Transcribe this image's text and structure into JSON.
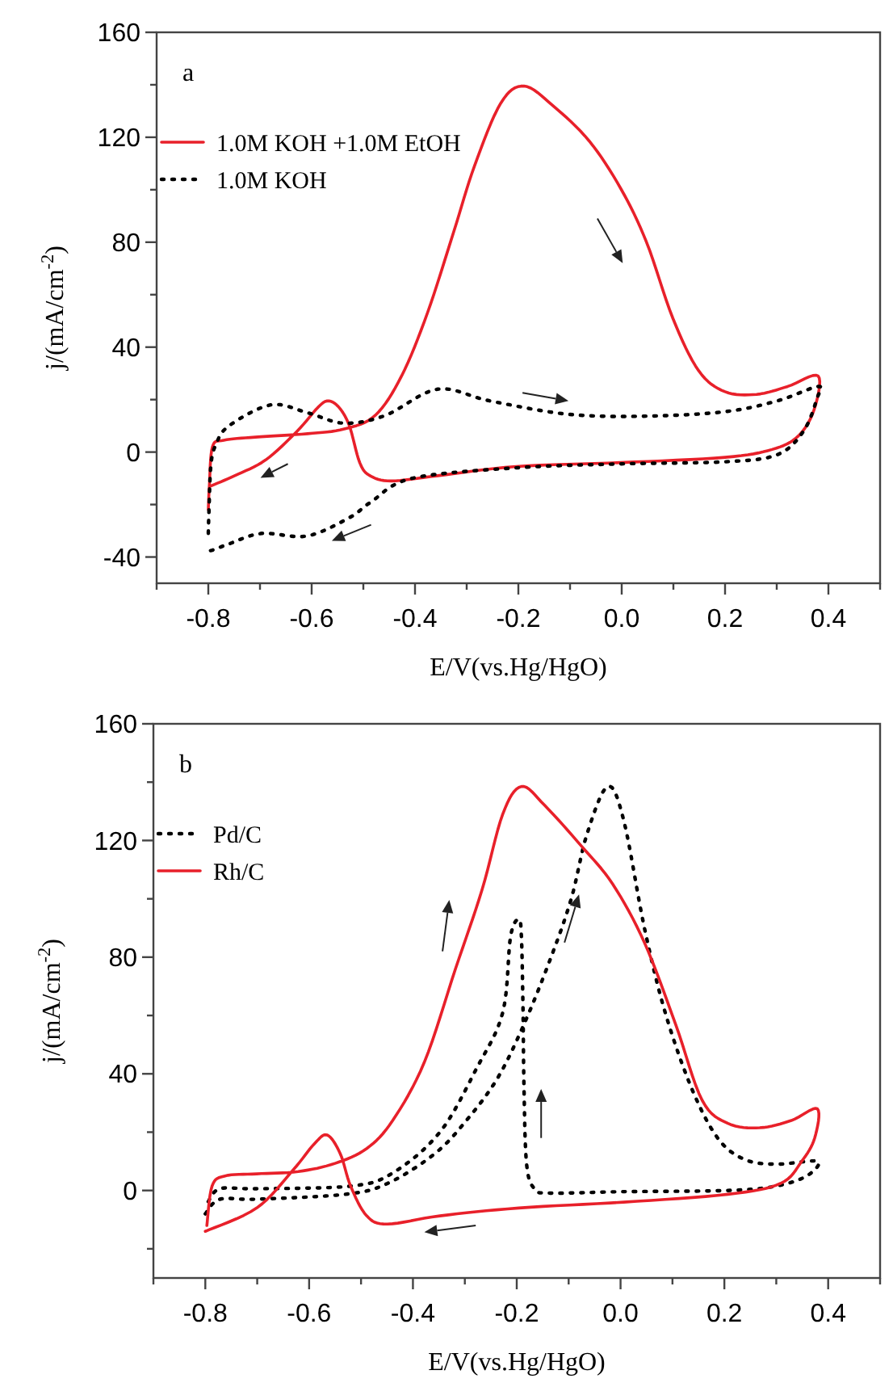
{
  "chart_data": [
    {
      "type": "line",
      "annotations": [
        "a"
      ],
      "xlabel": "E/V(vs.Hg/HgO)",
      "ylabel": "j/(mA/cm$^{-2}$)",
      "xlim": [
        -0.9,
        0.5
      ],
      "ylim": [
        -50,
        160
      ],
      "xticks": [
        {
          "value": -0.9,
          "label": null
        },
        -0.8,
        {
          "value": -0.7,
          "label": null
        },
        -0.6,
        {
          "value": -0.5,
          "label": null
        },
        -0.4,
        {
          "value": -0.3,
          "label": null
        },
        -0.2,
        {
          "value": -0.1,
          "label": null
        },
        {
          "value": 0,
          "label": "0.0"
        },
        {
          "value": 0.1,
          "label": null
        },
        0.2,
        {
          "value": 0.3,
          "label": null
        },
        0.4,
        {
          "value": 0.5,
          "label": null
        }
      ],
      "yticks": [
        -40,
        {
          "value": -20,
          "label": null
        },
        0,
        {
          "value": 20,
          "label": null
        },
        40,
        {
          "value": 60,
          "label": null
        },
        80,
        {
          "value": 100,
          "label": null
        },
        120,
        {
          "value": 140,
          "label": null
        },
        160
      ],
      "legend": "top left",
      "marker": "none",
      "grid": false,
      "series": [
        {
          "name": "1.0M KOH +1.0M EtOH",
          "color": "#e8202a",
          "line_style": "solid",
          "x": [
            -0.8,
            -0.798,
            -0.792,
            -0.77,
            -0.709,
            -0.608,
            -0.537,
            -0.477,
            -0.426,
            -0.376,
            -0.325,
            -0.285,
            -0.234,
            -0.189,
            -0.133,
            -0.063,
            -0.002,
            0.048,
            0.099,
            0.149,
            0.2,
            0.261,
            0.321,
            0.38,
            0.372,
            0.341,
            0.291,
            0.2,
            -0.002,
            -0.204,
            -0.356,
            -0.446,
            -0.487,
            -0.507,
            -0.527,
            -0.547,
            -0.568,
            -0.588,
            -0.628,
            -0.689,
            -0.749,
            -0.796
          ],
          "values": [
            -22,
            -13,
            2,
            4.5,
            5.7,
            7,
            8.8,
            14,
            29,
            53,
            84,
            109,
            133,
            139.5,
            132,
            118.6,
            100.5,
            80,
            51,
            31,
            23,
            22,
            25,
            29,
            16,
            6,
            1,
            -2,
            -4,
            -5.5,
            -9,
            -11,
            -9,
            -4,
            10,
            17,
            19.5,
            17,
            8,
            -3,
            -9,
            -13
          ]
        },
        {
          "name": "1.0M KOH",
          "color": "#000000",
          "line_style": "dotted",
          "x": [
            -0.8,
            -0.799,
            -0.795,
            -0.785,
            -0.76,
            -0.679,
            -0.608,
            -0.537,
            -0.457,
            -0.356,
            -0.255,
            -0.103,
            0.048,
            0.2,
            0.301,
            0.38,
            0.378,
            0.352,
            0.301,
            0.2,
            -0.002,
            -0.204,
            -0.406,
            -0.485,
            -0.527,
            -0.609,
            -0.697,
            -0.76,
            -0.794,
            -0.8
          ],
          "values": [
            -31,
            -24,
            -5,
            3,
            10,
            18,
            15,
            11,
            14,
            24,
            19.5,
            14.4,
            13.7,
            15.4,
            19.5,
            25,
            20.5,
            8,
            -1,
            -3.7,
            -4.5,
            -6,
            -10,
            -19,
            -25,
            -32,
            -31,
            -35,
            -37.5,
            -37
          ]
        }
      ]
    },
    {
      "type": "line",
      "annotations": [
        "b"
      ],
      "xlabel": "E/V(vs.Hg/HgO)",
      "ylabel": "j/(mA/cm$^{-2}$)",
      "xlim": [
        -0.9,
        0.5
      ],
      "ylim": [
        -30,
        160
      ],
      "xticks": [
        {
          "value": -0.9,
          "label": null
        },
        -0.8,
        {
          "value": -0.7,
          "label": null
        },
        -0.6,
        {
          "value": -0.5,
          "label": null
        },
        -0.4,
        {
          "value": -0.3,
          "label": null
        },
        -0.2,
        {
          "value": -0.1,
          "label": null
        },
        {
          "value": 0,
          "label": "0.0"
        },
        {
          "value": 0.1,
          "label": null
        },
        0.2,
        {
          "value": 0.3,
          "label": null
        },
        0.4,
        {
          "value": 0.5,
          "label": null
        }
      ],
      "yticks": [
        {
          "value": -20,
          "label": null
        },
        0,
        {
          "value": 20,
          "label": null
        },
        40,
        {
          "value": 60,
          "label": null
        },
        80,
        {
          "value": 100,
          "label": null
        },
        120,
        {
          "value": 140,
          "label": null
        },
        160
      ],
      "legend": "top left",
      "marker": "none",
      "grid": false,
      "series": [
        {
          "name": "Pd/C",
          "color": "#000000",
          "line_style": "dotted",
          "x": [
            -0.8,
            -0.772,
            -0.702,
            -0.53,
            -0.449,
            -0.358,
            -0.297,
            -0.237,
            -0.186,
            -0.136,
            -0.095,
            -0.065,
            -0.025,
            0.006,
            0.046,
            0.086,
            0.137,
            0.187,
            0.238,
            0.299,
            0.379,
            0.359,
            0.299,
            0.207,
            0.006,
            -0.136,
            -0.166,
            -0.181,
            -0.186,
            -0.188,
            -0.191,
            -0.196,
            -0.212,
            -0.227,
            -0.277,
            -0.348,
            -0.439,
            -0.52,
            -0.702,
            -0.772,
            -0.795
          ],
          "values": [
            -8,
            -3,
            -3,
            -1.3,
            2.4,
            12.6,
            24,
            38.5,
            57,
            79,
            100,
            122,
            138.5,
            127,
            90,
            61,
            35,
            18,
            10.7,
            9,
            10,
            5,
            1.5,
            0,
            -0.4,
            -0.9,
            0.6,
            9,
            35,
            63,
            87,
            93,
            87,
            61,
            42,
            20,
            6,
            1.5,
            0.6,
            0.6,
            -4
          ]
        },
        {
          "name": "Rh/C",
          "color": "#e8202a",
          "line_style": "solid",
          "x": [
            -0.797,
            -0.787,
            -0.762,
            -0.701,
            -0.621,
            -0.55,
            -0.489,
            -0.439,
            -0.378,
            -0.318,
            -0.267,
            -0.227,
            -0.191,
            -0.146,
            -0.075,
            -0.015,
            0.046,
            0.106,
            0.157,
            0.207,
            0.268,
            0.329,
            0.379,
            0.374,
            0.349,
            0.308,
            0.207,
            0.006,
            -0.196,
            -0.348,
            -0.449,
            -0.489,
            -0.52,
            -0.54,
            -0.565,
            -0.59,
            -0.631,
            -0.701,
            -0.8
          ],
          "values": [
            -12,
            1.5,
            5,
            5.7,
            6.5,
            9.3,
            14.4,
            24,
            44,
            76,
            103,
            129,
            138.5,
            132,
            118,
            105,
            85,
            57,
            31,
            23,
            21.5,
            24,
            28,
            18,
            10,
            2.4,
            -1.3,
            -4,
            -6,
            -8.7,
            -11.5,
            -8.7,
            1.5,
            12.6,
            19,
            16,
            7,
            -6,
            -14
          ]
        }
      ]
    }
  ]
}
